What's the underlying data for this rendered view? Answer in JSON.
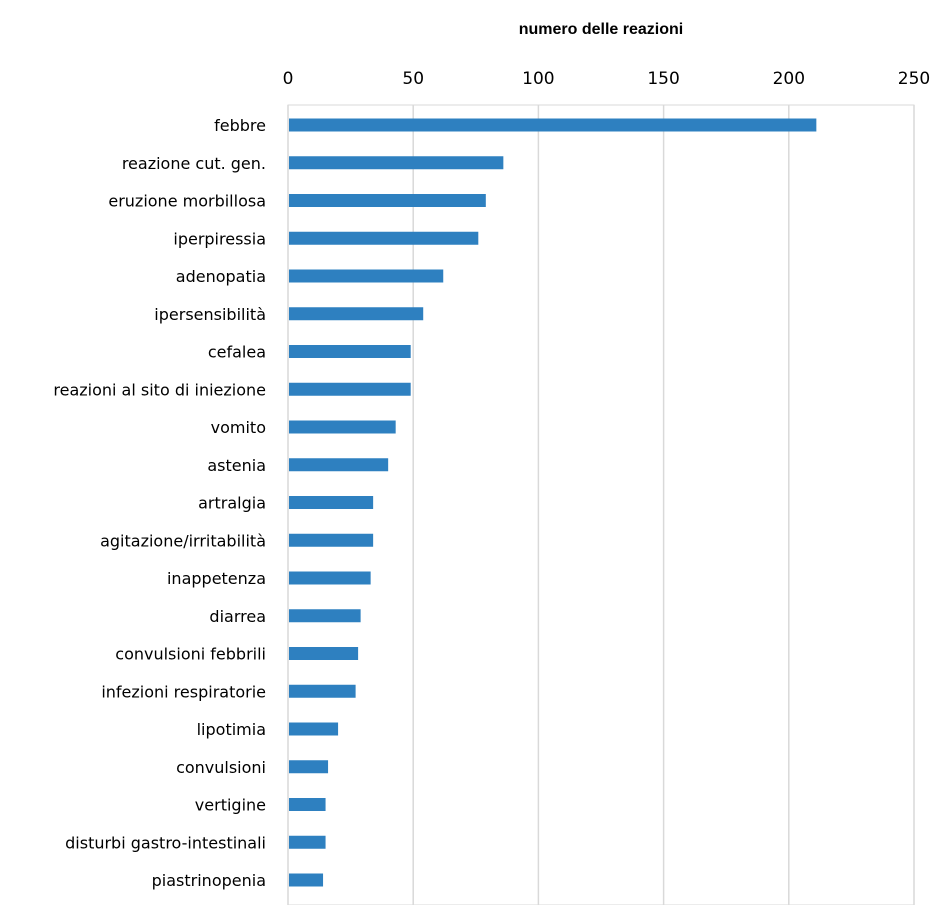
{
  "chart_data": {
    "type": "bar",
    "orientation": "horizontal",
    "title": "",
    "xlabel": "numero delle reazioni",
    "xlabel_position": "top",
    "ylabel": "",
    "xlim": [
      0,
      250
    ],
    "xticks": [
      "0",
      "50",
      "100",
      "150",
      "200",
      "250"
    ],
    "grid": true,
    "legend": "none",
    "bar_color": "#2e80c0",
    "categories": [
      "febbre",
      "reazione cut. gen.",
      "eruzione morbillosa",
      "iperpiressia",
      "adenopatia",
      "ipersensibilità",
      "cefalea",
      "reazioni al sito di iniezione",
      "vomito",
      "astenia",
      "artralgia",
      "agitazione/irritabilità",
      "inappetenza",
      "diarrea",
      "convulsioni febbrili",
      "infezioni respiratorie",
      "lipotimia",
      "convulsioni ",
      "vertigine",
      "disturbi gastro-intestinali",
      "piastrinopenia"
    ],
    "values": [
      211,
      86,
      79,
      76,
      62,
      54,
      49,
      49,
      43,
      40,
      34,
      34,
      33,
      29,
      28,
      27,
      20,
      16,
      15,
      15,
      14
    ]
  }
}
